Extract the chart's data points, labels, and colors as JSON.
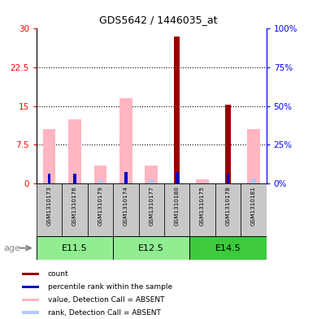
{
  "title": "GDS5642 / 1446035_at",
  "samples": [
    "GSM1310173",
    "GSM1310176",
    "GSM1310179",
    "GSM1310174",
    "GSM1310177",
    "GSM1310180",
    "GSM1310175",
    "GSM1310178",
    "GSM1310181"
  ],
  "age_groups": [
    {
      "label": "E11.5",
      "start": 0,
      "end": 3,
      "color": "#90EE90"
    },
    {
      "label": "E12.5",
      "start": 3,
      "end": 6,
      "color": "#90EE90"
    },
    {
      "label": "E14.5",
      "start": 6,
      "end": 9,
      "color": "#3DCA3D"
    }
  ],
  "count_values": [
    0,
    0,
    0,
    0,
    0,
    28.5,
    0,
    15.2,
    0
  ],
  "percentile_values": [
    6.2,
    6.2,
    0,
    7.5,
    0,
    7.5,
    0,
    6.5,
    0
  ],
  "absent_value": [
    10.5,
    12.5,
    3.5,
    16.5,
    3.5,
    0,
    0.8,
    0,
    10.5
  ],
  "absent_rank": [
    0,
    0,
    2.0,
    0,
    2.5,
    0,
    0,
    0,
    3.0
  ],
  "ylim_left": [
    0,
    30
  ],
  "ylim_right": [
    0,
    100
  ],
  "yticks_left": [
    0,
    7.5,
    15,
    22.5,
    30
  ],
  "yticks_right": [
    0,
    25,
    50,
    75,
    100
  ],
  "color_count": "#990000",
  "color_percentile": "#0000CC",
  "color_absent_value": "#FFB6C1",
  "color_absent_rank": "#B0C8FF",
  "bg_color": "#C8C8C8",
  "legend_items": [
    {
      "color": "#990000",
      "label": "count"
    },
    {
      "color": "#0000CC",
      "label": "percentile rank within the sample"
    },
    {
      "color": "#FFB6C1",
      "label": "value, Detection Call = ABSENT"
    },
    {
      "color": "#B0C8FF",
      "label": "rank, Detection Call = ABSENT"
    }
  ]
}
